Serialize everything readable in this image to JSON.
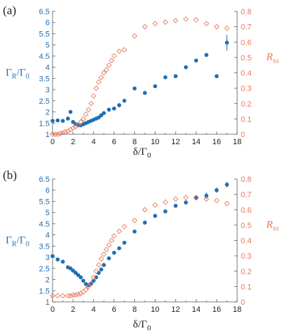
{
  "colors": {
    "left_series": "#1f6fb4",
    "right_series": "#e8795a",
    "axis": "#555555",
    "text_dark": "#222222"
  },
  "chart_data": [
    {
      "type": "scatter",
      "panel_label": "(a)",
      "xlabel": "δ/Γ0",
      "ylabel_left": "ΓR/Γ0",
      "ylabel_right": "Rss",
      "xlim": [
        0,
        18
      ],
      "ylim_left": [
        1,
        6.5
      ],
      "ylim_right": [
        0,
        0.8
      ],
      "x_ticks": [
        "0",
        "2",
        "4",
        "6",
        "8",
        "10",
        "12",
        "14",
        "16",
        "18"
      ],
      "y_ticks_left": [
        "1",
        "1.5",
        "2",
        "2.5",
        "3",
        "3.5",
        "4",
        "4.5",
        "5",
        "5.5",
        "6",
        "6.5"
      ],
      "y_ticks_right": [
        "0",
        "0.1",
        "0.2",
        "0.3",
        "0.4",
        "0.5",
        "0.6",
        "0.7",
        "0.8"
      ],
      "grid": false,
      "series": [
        {
          "axis": "left",
          "marker": "filled-circle",
          "x": [
            0,
            0.5,
            1,
            1.5,
            1.75,
            2,
            2.25,
            2.5,
            2.75,
            3,
            3.25,
            3.5,
            3.75,
            4,
            4.25,
            4.5,
            4.75,
            5,
            5.5,
            6,
            6.5,
            7,
            8,
            9,
            10,
            11,
            12,
            13,
            14,
            15,
            16,
            17
          ],
          "y": [
            1.6,
            1.62,
            1.6,
            1.7,
            2.0,
            1.55,
            1.45,
            1.4,
            1.4,
            1.45,
            1.5,
            1.55,
            1.6,
            1.65,
            1.7,
            1.75,
            1.85,
            1.95,
            2.1,
            2.15,
            2.3,
            2.5,
            3.05,
            2.85,
            3.15,
            3.55,
            3.6,
            4.0,
            4.3,
            4.55,
            3.6,
            5.1
          ],
          "err": [
            0,
            0,
            0,
            0,
            0,
            0,
            0,
            0,
            0,
            0,
            0,
            0,
            0,
            0,
            0,
            0,
            0,
            0,
            0,
            0,
            0,
            0,
            0,
            0,
            0,
            0,
            0,
            0,
            0,
            0,
            0,
            0.35
          ]
        },
        {
          "axis": "right",
          "marker": "open-diamond",
          "x": [
            0,
            0.25,
            0.5,
            0.75,
            1,
            1.25,
            1.5,
            1.75,
            2,
            2.25,
            2.5,
            2.75,
            3,
            3.25,
            3.5,
            3.75,
            4,
            4.25,
            4.5,
            4.75,
            5,
            5.25,
            5.5,
            5.75,
            6,
            6.5,
            7,
            8,
            9,
            10,
            11,
            12,
            13,
            14,
            15,
            16,
            17
          ],
          "y": [
            0.0,
            0.0,
            0.0,
            0.005,
            0.01,
            0.015,
            0.02,
            0.03,
            0.04,
            0.05,
            0.06,
            0.08,
            0.1,
            0.13,
            0.16,
            0.2,
            0.25,
            0.3,
            0.34,
            0.37,
            0.4,
            0.42,
            0.45,
            0.48,
            0.51,
            0.54,
            0.55,
            0.64,
            0.7,
            0.72,
            0.73,
            0.74,
            0.75,
            0.745,
            0.72,
            0.7,
            0.69
          ]
        }
      ]
    },
    {
      "type": "scatter",
      "panel_label": "(b)",
      "xlabel": "δ/Γ0",
      "ylabel_left": "ΓR/Γ0",
      "ylabel_right": "Rss",
      "xlim": [
        0,
        18
      ],
      "ylim_left": [
        1,
        6.5
      ],
      "ylim_right": [
        0,
        0.8
      ],
      "x_ticks": [
        "0",
        "2",
        "4",
        "6",
        "8",
        "10",
        "12",
        "14",
        "16",
        "18"
      ],
      "y_ticks_left": [
        "1",
        "1.5",
        "2",
        "2.5",
        "3",
        "3.5",
        "4",
        "4.5",
        "5",
        "5.5",
        "6",
        "6.5"
      ],
      "y_ticks_right": [
        "0",
        "0.1",
        "0.2",
        "0.3",
        "0.4",
        "0.5",
        "0.6",
        "0.7",
        "0.8"
      ],
      "grid": false,
      "series": [
        {
          "axis": "left",
          "marker": "filled-circle",
          "x": [
            0,
            0.5,
            1,
            1.5,
            1.75,
            2,
            2.25,
            2.5,
            2.75,
            3,
            3.25,
            3.5,
            3.75,
            4,
            4.25,
            4.5,
            4.75,
            5,
            5.5,
            6,
            6.5,
            7,
            8,
            9,
            10,
            11,
            12,
            13,
            14,
            15,
            16,
            17
          ],
          "y": [
            3.05,
            2.9,
            2.8,
            2.55,
            2.5,
            2.4,
            2.3,
            2.2,
            2.1,
            1.95,
            1.8,
            1.75,
            1.8,
            1.95,
            2.1,
            2.3,
            2.45,
            2.65,
            2.95,
            3.2,
            3.4,
            3.65,
            4.15,
            4.55,
            4.85,
            5.05,
            5.3,
            5.45,
            5.65,
            5.75,
            6.0,
            6.25
          ],
          "err": [
            0,
            0,
            0,
            0,
            0,
            0,
            0,
            0,
            0,
            0,
            0,
            0,
            0,
            0,
            0,
            0,
            0,
            0,
            0,
            0,
            0,
            0,
            0,
            0,
            0,
            0,
            0,
            0.1,
            0.1,
            0.15,
            0.12,
            0.12
          ]
        },
        {
          "axis": "right",
          "marker": "open-diamond",
          "x": [
            0,
            0.5,
            1,
            1.5,
            1.75,
            2,
            2.25,
            2.5,
            2.75,
            3,
            3.25,
            3.5,
            3.75,
            4,
            4.25,
            4.5,
            4.75,
            5,
            5.25,
            5.5,
            5.75,
            6,
            6.5,
            7,
            8,
            9,
            10,
            11,
            12,
            13,
            14,
            15,
            16,
            17
          ],
          "y": [
            0.04,
            0.04,
            0.04,
            0.04,
            0.04,
            0.045,
            0.045,
            0.05,
            0.055,
            0.065,
            0.08,
            0.1,
            0.12,
            0.16,
            0.2,
            0.24,
            0.28,
            0.31,
            0.34,
            0.37,
            0.4,
            0.43,
            0.46,
            0.49,
            0.53,
            0.6,
            0.63,
            0.65,
            0.67,
            0.68,
            0.68,
            0.67,
            0.66,
            0.64
          ]
        }
      ]
    }
  ]
}
